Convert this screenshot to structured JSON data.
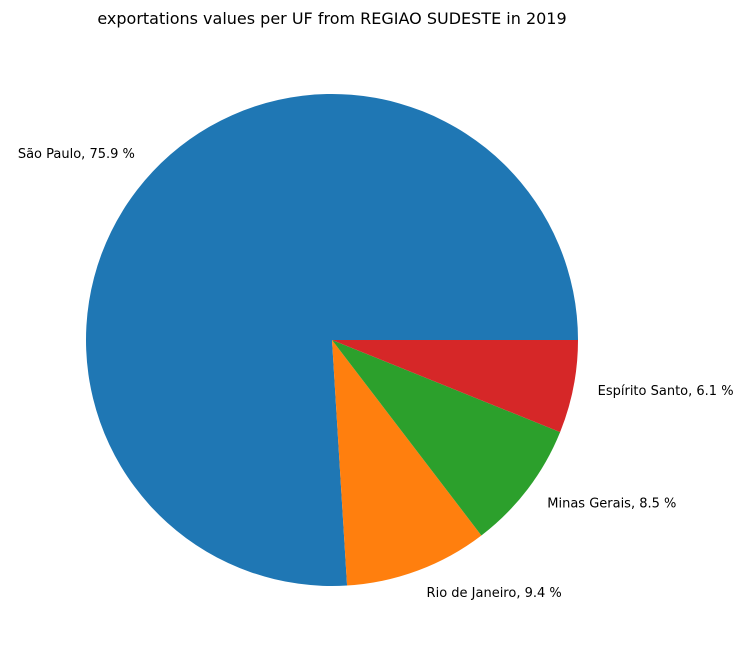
{
  "chart_data": {
    "type": "pie",
    "title": "exportations values per UF from REGIAO SUDESTE in 2019",
    "start_angle_deg": 0,
    "direction": "counterclockwise",
    "legend": "none",
    "slices": [
      {
        "label": "São Paulo",
        "percent": 75.9,
        "display": "São Paulo, 75.9 %",
        "color": "#1f77b4"
      },
      {
        "label": "Rio de Janeiro",
        "percent": 9.4,
        "display": "Rio de Janeiro, 9.4 %",
        "color": "#ff7f0e"
      },
      {
        "label": "Minas Gerais",
        "percent": 8.5,
        "display": "Minas Gerais, 8.5 %",
        "color": "#2ca02c"
      },
      {
        "label": "Espírito Santo",
        "percent": 6.1,
        "display": "Espírito Santo, 6.1 %",
        "color": "#d62728"
      }
    ]
  }
}
